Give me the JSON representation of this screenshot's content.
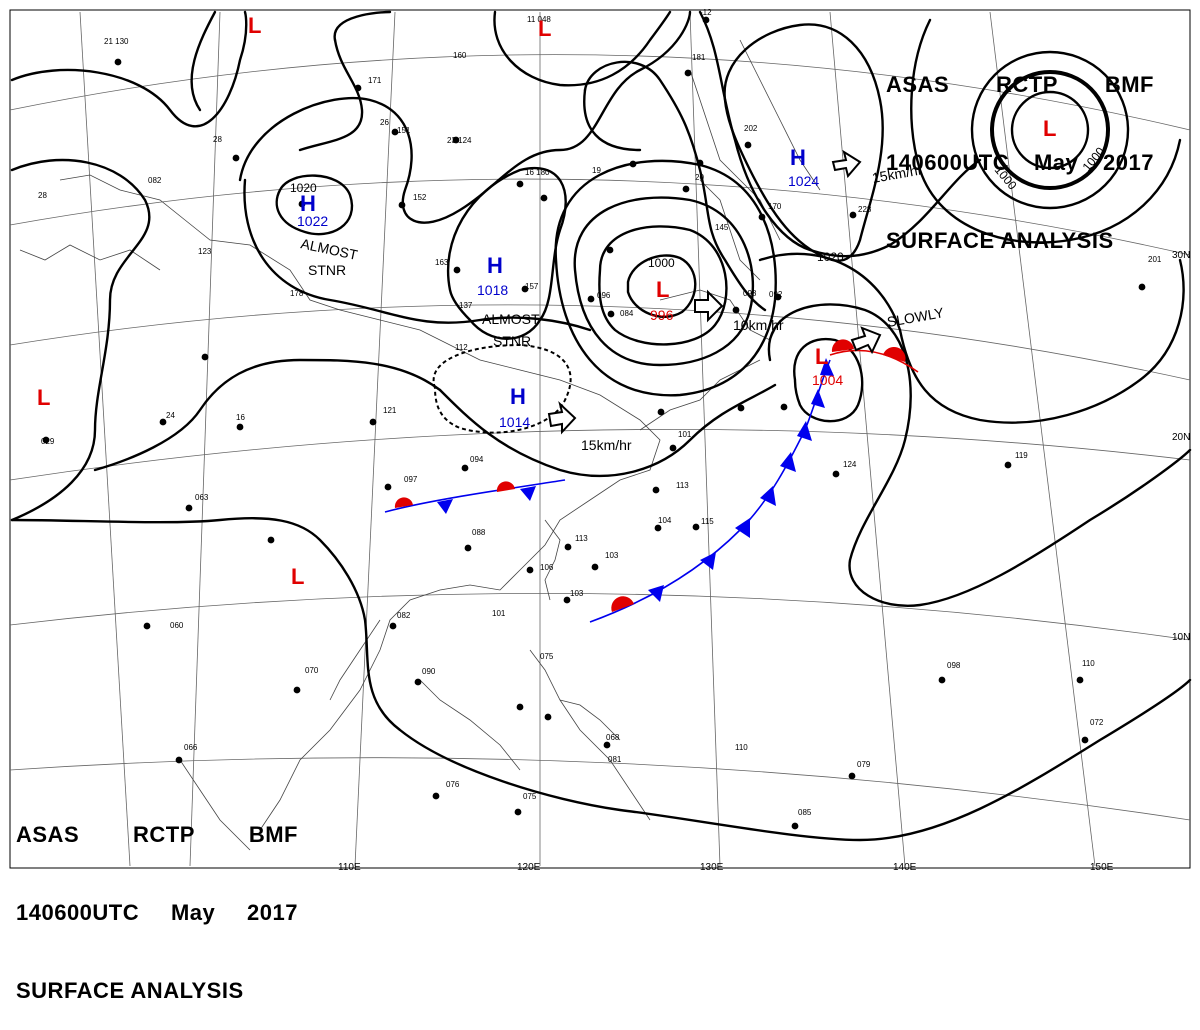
{
  "header": {
    "line1": [
      "ASAS",
      "RCTP",
      "BMF"
    ],
    "line2": [
      "140600UTC",
      "May",
      "2017"
    ],
    "line3": "SURFACE ANALYSIS"
  },
  "pressure_centers": [
    {
      "type": "H",
      "value": "1022"
    },
    {
      "type": "H",
      "value": "1018"
    },
    {
      "type": "H",
      "value": "1014"
    },
    {
      "type": "H",
      "value": "1024"
    },
    {
      "type": "L",
      "value": "996"
    },
    {
      "type": "L",
      "value": "1004"
    }
  ],
  "isobar_labels": [
    "1020",
    "1000",
    "1000",
    "1000",
    "1020"
  ],
  "movement_labels": [
    "ALMOST",
    "STNR",
    "ALMOST",
    "STNR",
    "15km/hr",
    "10km/hr",
    "15km/hr",
    "SLOWLY"
  ],
  "lat_labels": [
    "30N",
    "20N",
    "10N"
  ],
  "lon_labels": [
    "110E",
    "120E",
    "130E",
    "140E",
    "150E"
  ],
  "colors": {
    "high": "#0000cc",
    "low": "#e00000",
    "cold_front": "#0000ee",
    "warm_front": "#e00000",
    "isobar": "#000000",
    "grid": "#555555"
  }
}
